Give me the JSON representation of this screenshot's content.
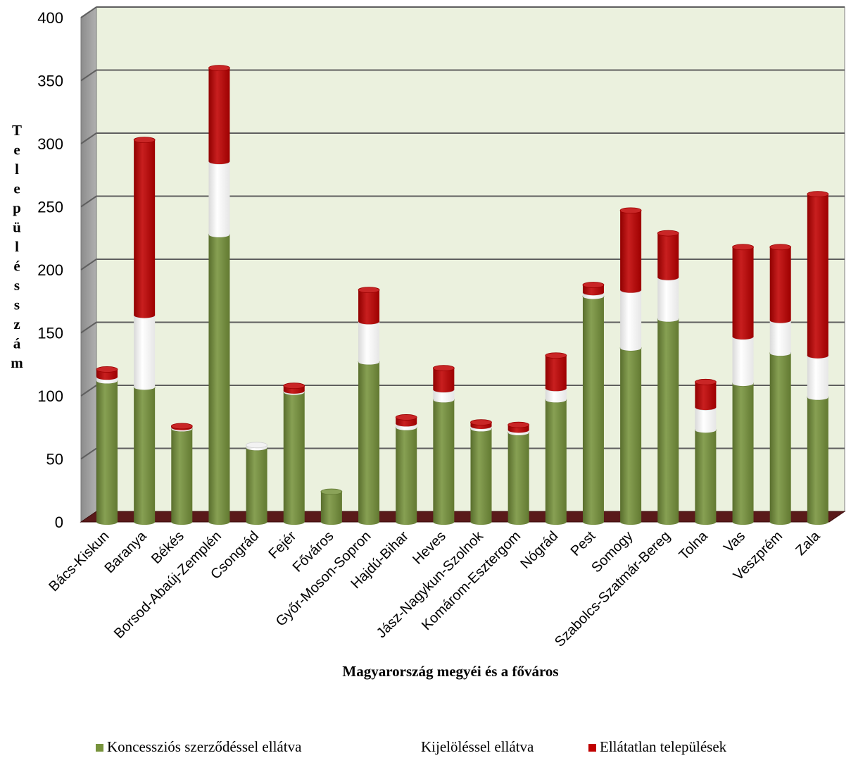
{
  "chart_data": {
    "type": "bar",
    "stacked": true,
    "categories": [
      "Bács-Kiskun",
      "Baranya",
      "Békés",
      "Borsod-Abaúj-Zemplén",
      "Csongrád",
      "Fejér",
      "Főváros",
      "Győr-Moson-Sopron",
      "Hajdú-Bihar",
      "Heves",
      "Jász-Nagykun-Szolnok",
      "Komárom-Esztergom",
      "Nógrád",
      "Pest",
      "Somogy",
      "Szabolcs-Szatmár-Bereg",
      "Tolna",
      "Vas",
      "Veszprém",
      "Zala"
    ],
    "series": [
      {
        "name": "Koncessziós szerződéssel ellátva",
        "color": "#77933c",
        "values": [
          112,
          107,
          74,
          228,
          59,
          103,
          24,
          127,
          75,
          97,
          74,
          71,
          97,
          179,
          138,
          161,
          73,
          110,
          134,
          99
        ]
      },
      {
        "name": "Kijelöléssel ellátva",
        "color": "#ffffff",
        "values": [
          3,
          57,
          1,
          58,
          2,
          1,
          0,
          32,
          3,
          8,
          2,
          2,
          9,
          3,
          46,
          33,
          18,
          37,
          26,
          33
        ]
      },
      {
        "name": "Ellátatlan települések",
        "color": "#c00000",
        "values": [
          6,
          139,
          1,
          74,
          0,
          4,
          0,
          25,
          5,
          17,
          3,
          4,
          26,
          6,
          63,
          35,
          20,
          71,
          58,
          128
        ]
      }
    ],
    "title": "",
    "xlabel": "Magyarország megyéi és a főváros",
    "ylabel": "Településszám",
    "ylim": [
      0,
      400
    ],
    "yticks": [
      0,
      50,
      100,
      150,
      200,
      250,
      300,
      350,
      400
    ],
    "grid": true,
    "legend": "bottom"
  }
}
